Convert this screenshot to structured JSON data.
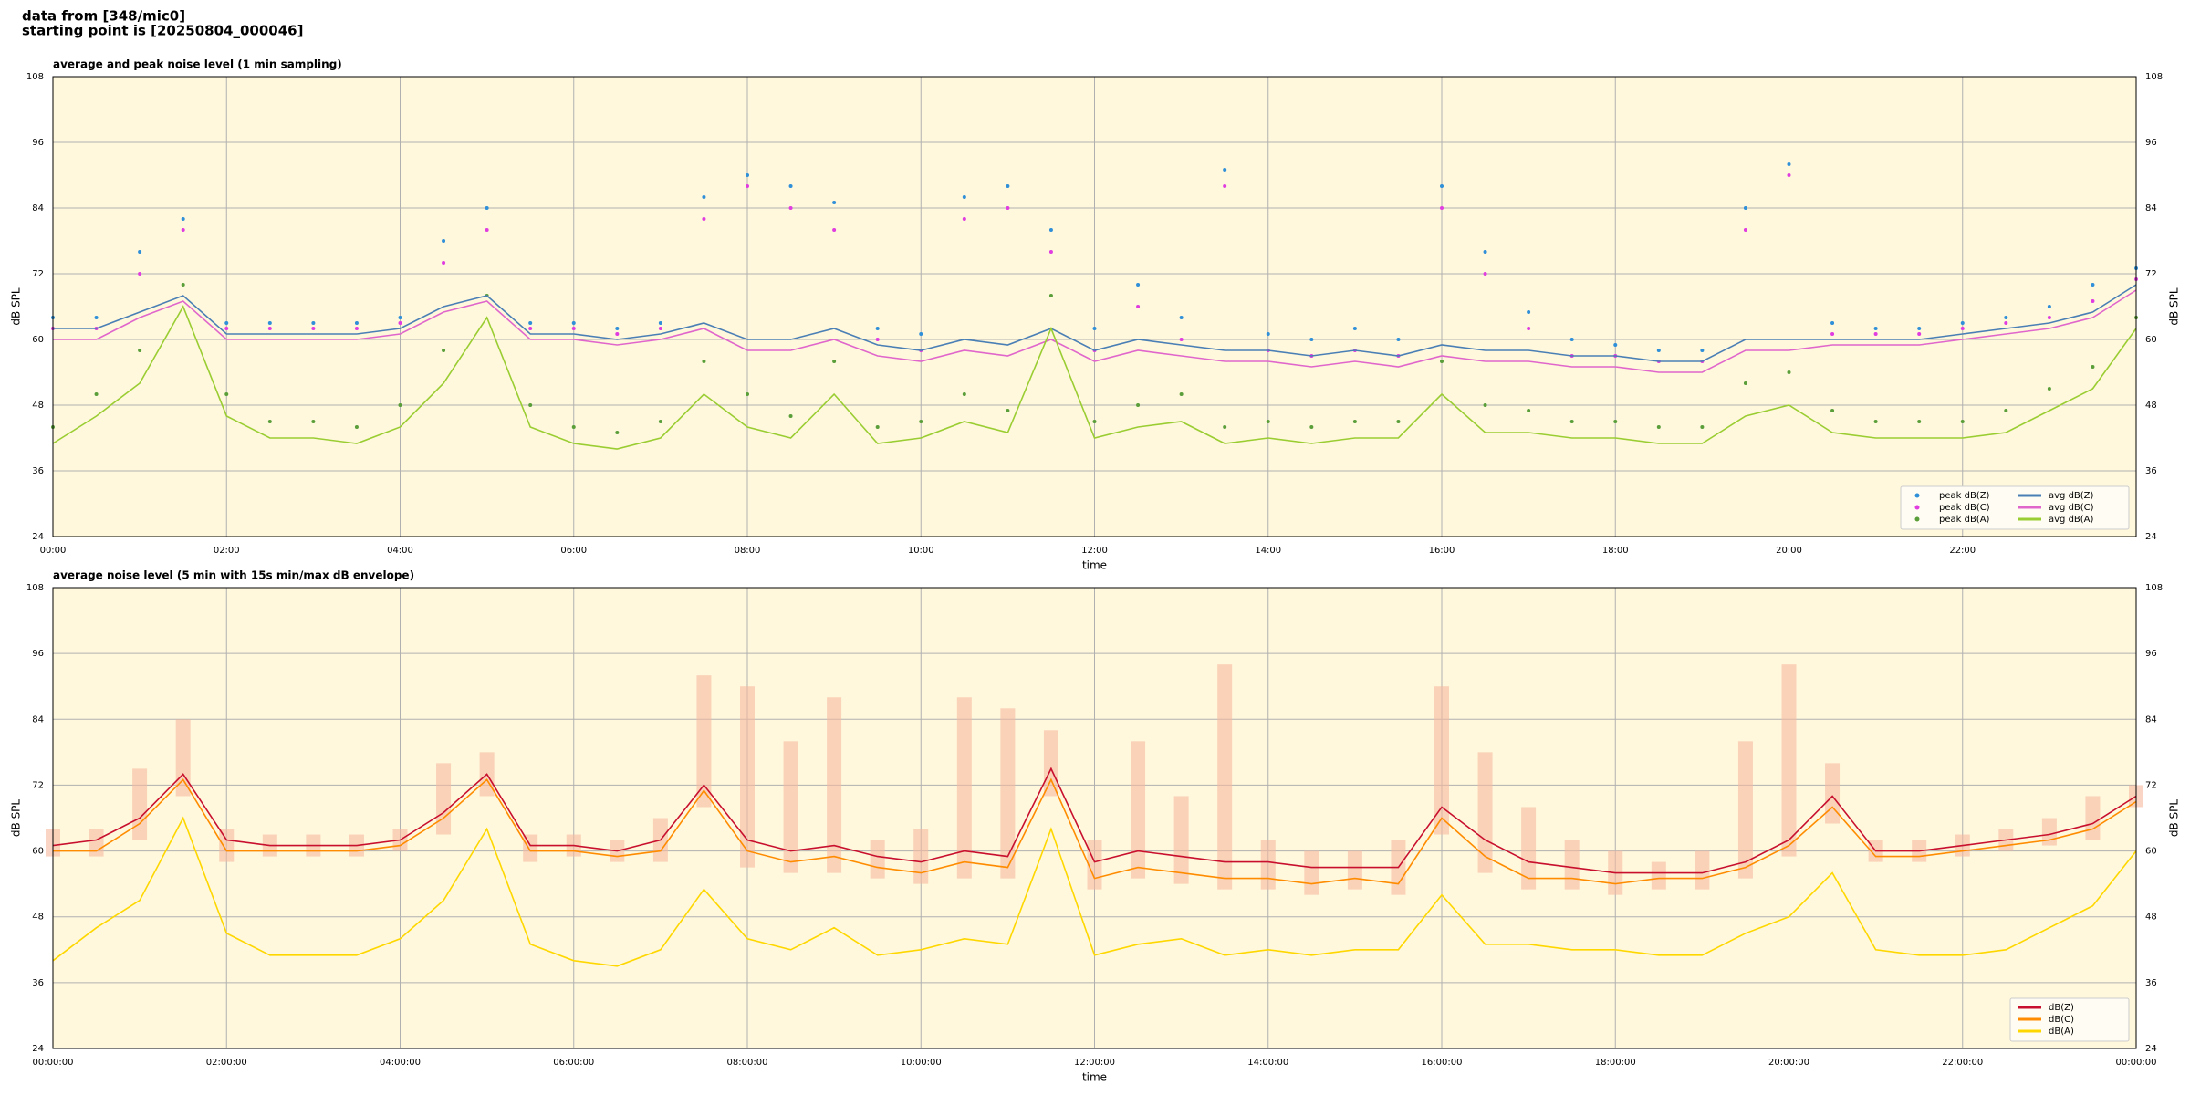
{
  "header": {
    "lines": [
      "data from [348/mic0]",
      "starting point is [20250804_000046]"
    ]
  },
  "chart_data": [
    {
      "type": "line",
      "title": "average and peak noise level (1 min sampling)",
      "x_label": "time",
      "y_label": "dB SPL",
      "background": "#fff8dc",
      "grid": true,
      "legend": "lower right",
      "legend_columns": 2,
      "xlim": [
        0,
        24
      ],
      "ylim": [
        24,
        108
      ],
      "xticks": [
        {
          "value": 0,
          "label": "00:00"
        },
        {
          "value": 2,
          "label": "02:00"
        },
        {
          "value": 4,
          "label": "04:00"
        },
        {
          "value": 6,
          "label": "06:00"
        },
        {
          "value": 8,
          "label": "08:00"
        },
        {
          "value": 10,
          "label": "10:00"
        },
        {
          "value": 12,
          "label": "12:00"
        },
        {
          "value": 14,
          "label": "14:00"
        },
        {
          "value": 16,
          "label": "16:00"
        },
        {
          "value": 18,
          "label": "18:00"
        },
        {
          "value": 20,
          "label": "20:00"
        },
        {
          "value": 22,
          "label": "22:00"
        }
      ],
      "yticks": [
        24,
        36,
        48,
        60,
        72,
        84,
        96,
        108
      ],
      "x": [
        0,
        0.5,
        1,
        1.5,
        2,
        2.5,
        3,
        3.5,
        4,
        4.5,
        5,
        5.5,
        6,
        6.5,
        7,
        7.5,
        8,
        8.5,
        9,
        9.5,
        10,
        10.5,
        11,
        11.5,
        12,
        12.5,
        13,
        13.5,
        14,
        14.5,
        15,
        15.5,
        16,
        16.5,
        17,
        17.5,
        18,
        18.5,
        19,
        19.5,
        20,
        20.5,
        21,
        21.5,
        22,
        22.5,
        23,
        23.5,
        24
      ],
      "series": [
        {
          "name": "peak dB(Z)",
          "kind": "points",
          "color": "#2f8fd8",
          "values": [
            64,
            64,
            76,
            82,
            63,
            63,
            63,
            63,
            64,
            78,
            84,
            63,
            63,
            62,
            63,
            86,
            90,
            88,
            85,
            62,
            61,
            86,
            88,
            80,
            62,
            70,
            64,
            91,
            61,
            60,
            62,
            60,
            88,
            76,
            65,
            60,
            59,
            58,
            58,
            84,
            92,
            63,
            62,
            62,
            63,
            64,
            66,
            70,
            73
          ]
        },
        {
          "name": "peak dB(C)",
          "kind": "points",
          "color": "#e03ce0",
          "values": [
            62,
            62,
            72,
            80,
            62,
            62,
            62,
            62,
            63,
            74,
            80,
            62,
            62,
            61,
            62,
            82,
            88,
            84,
            80,
            60,
            58,
            82,
            84,
            76,
            58,
            66,
            60,
            88,
            58,
            57,
            58,
            57,
            84,
            72,
            62,
            57,
            57,
            56,
            56,
            80,
            90,
            61,
            61,
            61,
            62,
            63,
            64,
            67,
            71
          ]
        },
        {
          "name": "peak dB(A)",
          "kind": "points",
          "color": "#5a9e3a",
          "values": [
            44,
            50,
            58,
            70,
            50,
            45,
            45,
            44,
            48,
            58,
            68,
            48,
            44,
            43,
            45,
            56,
            50,
            46,
            56,
            44,
            45,
            50,
            47,
            68,
            45,
            48,
            50,
            44,
            45,
            44,
            45,
            45,
            56,
            48,
            47,
            45,
            45,
            44,
            44,
            52,
            54,
            47,
            45,
            45,
            45,
            47,
            51,
            55,
            64
          ]
        },
        {
          "name": "avg dB(Z)",
          "kind": "line",
          "color": "#4a7fb5",
          "values": [
            62,
            62,
            65,
            68,
            61,
            61,
            61,
            61,
            62,
            66,
            68,
            61,
            61,
            60,
            61,
            63,
            60,
            60,
            62,
            59,
            58,
            60,
            59,
            62,
            58,
            60,
            59,
            58,
            58,
            57,
            58,
            57,
            59,
            58,
            58,
            57,
            57,
            56,
            56,
            60,
            60,
            60,
            60,
            60,
            61,
            62,
            63,
            65,
            70
          ]
        },
        {
          "name": "avg dB(C)",
          "kind": "line",
          "color": "#e066cc",
          "values": [
            60,
            60,
            64,
            67,
            60,
            60,
            60,
            60,
            61,
            65,
            67,
            60,
            60,
            59,
            60,
            62,
            58,
            58,
            60,
            57,
            56,
            58,
            57,
            60,
            56,
            58,
            57,
            56,
            56,
            55,
            56,
            55,
            57,
            56,
            56,
            55,
            55,
            54,
            54,
            58,
            58,
            59,
            59,
            59,
            60,
            61,
            62,
            64,
            69
          ]
        },
        {
          "name": "avg dB(A)",
          "kind": "line",
          "color": "#9acd32",
          "values": [
            41,
            46,
            52,
            66,
            46,
            42,
            42,
            41,
            44,
            52,
            64,
            44,
            41,
            40,
            42,
            50,
            44,
            42,
            50,
            41,
            42,
            45,
            43,
            62,
            42,
            44,
            45,
            41,
            42,
            41,
            42,
            42,
            50,
            43,
            43,
            42,
            42,
            41,
            41,
            46,
            48,
            43,
            42,
            42,
            42,
            43,
            47,
            51,
            62
          ]
        }
      ]
    },
    {
      "type": "line",
      "title": "average noise level (5 min with 15s min/max dB envelope)",
      "x_label": "time",
      "y_label": "dB SPL",
      "background": "#fff8dc",
      "grid": true,
      "legend": "lower right",
      "legend_columns": 1,
      "xlim": [
        0,
        24
      ],
      "ylim": [
        24,
        108
      ],
      "xticks": [
        {
          "value": 0,
          "label": "00:00:00"
        },
        {
          "value": 2,
          "label": "02:00:00"
        },
        {
          "value": 4,
          "label": "04:00:00"
        },
        {
          "value": 6,
          "label": "06:00:00"
        },
        {
          "value": 8,
          "label": "08:00:00"
        },
        {
          "value": 10,
          "label": "10:00:00"
        },
        {
          "value": 12,
          "label": "12:00:00"
        },
        {
          "value": 14,
          "label": "14:00:00"
        },
        {
          "value": 16,
          "label": "16:00:00"
        },
        {
          "value": 18,
          "label": "18:00:00"
        },
        {
          "value": 20,
          "label": "20:00:00"
        },
        {
          "value": 22,
          "label": "22:00:00"
        },
        {
          "value": 24,
          "label": "00:00:00"
        }
      ],
      "yticks": [
        24,
        36,
        48,
        60,
        72,
        84,
        96,
        108
      ],
      "x": [
        0,
        0.5,
        1,
        1.5,
        2,
        2.5,
        3,
        3.5,
        4,
        4.5,
        5,
        5.5,
        6,
        6.5,
        7,
        7.5,
        8,
        8.5,
        9,
        9.5,
        10,
        10.5,
        11,
        11.5,
        12,
        12.5,
        13,
        13.5,
        14,
        14.5,
        15,
        15.5,
        16,
        16.5,
        17,
        17.5,
        18,
        18.5,
        19,
        19.5,
        20,
        20.5,
        21,
        21.5,
        22,
        22.5,
        23,
        23.5,
        24
      ],
      "envelope": {
        "color": "#f6b9a0",
        "low": [
          59,
          59,
          62,
          70,
          58,
          59,
          59,
          59,
          60,
          63,
          70,
          58,
          59,
          58,
          58,
          68,
          57,
          56,
          56,
          55,
          54,
          55,
          55,
          70,
          53,
          55,
          54,
          53,
          53,
          52,
          53,
          52,
          63,
          56,
          53,
          53,
          52,
          53,
          53,
          55,
          59,
          65,
          58,
          58,
          59,
          60,
          61,
          62,
          68
        ],
        "high": [
          64,
          64,
          75,
          84,
          64,
          63,
          63,
          63,
          64,
          76,
          78,
          63,
          63,
          62,
          66,
          92,
          90,
          80,
          88,
          62,
          64,
          88,
          86,
          82,
          62,
          80,
          70,
          94,
          62,
          60,
          60,
          62,
          90,
          78,
          68,
          62,
          60,
          58,
          60,
          80,
          94,
          76,
          62,
          62,
          63,
          64,
          66,
          70,
          72
        ]
      },
      "series": [
        {
          "name": "dB(Z)",
          "kind": "line",
          "color": "#c8102e",
          "values": [
            61,
            62,
            66,
            74,
            62,
            61,
            61,
            61,
            62,
            67,
            74,
            61,
            61,
            60,
            62,
            72,
            62,
            60,
            61,
            59,
            58,
            60,
            59,
            75,
            58,
            60,
            59,
            58,
            58,
            57,
            57,
            57,
            68,
            62,
            58,
            57,
            56,
            56,
            56,
            58,
            62,
            70,
            60,
            60,
            61,
            62,
            63,
            65,
            70
          ]
        },
        {
          "name": "dB(C)",
          "kind": "line",
          "color": "#ff8c00",
          "values": [
            60,
            60,
            65,
            73,
            60,
            60,
            60,
            60,
            61,
            66,
            73,
            60,
            60,
            59,
            60,
            71,
            60,
            58,
            59,
            57,
            56,
            58,
            57,
            73,
            55,
            57,
            56,
            55,
            55,
            54,
            55,
            54,
            66,
            59,
            55,
            55,
            54,
            55,
            55,
            57,
            61,
            68,
            59,
            59,
            60,
            61,
            62,
            64,
            69
          ]
        },
        {
          "name": "dB(A)",
          "kind": "line",
          "color": "#ffd700",
          "values": [
            40,
            46,
            51,
            66,
            45,
            41,
            41,
            41,
            44,
            51,
            64,
            43,
            40,
            39,
            42,
            53,
            44,
            42,
            46,
            41,
            42,
            44,
            43,
            64,
            41,
            43,
            44,
            41,
            42,
            41,
            42,
            42,
            52,
            43,
            43,
            42,
            42,
            41,
            41,
            45,
            48,
            56,
            42,
            41,
            41,
            42,
            46,
            50,
            60
          ]
        }
      ]
    }
  ]
}
